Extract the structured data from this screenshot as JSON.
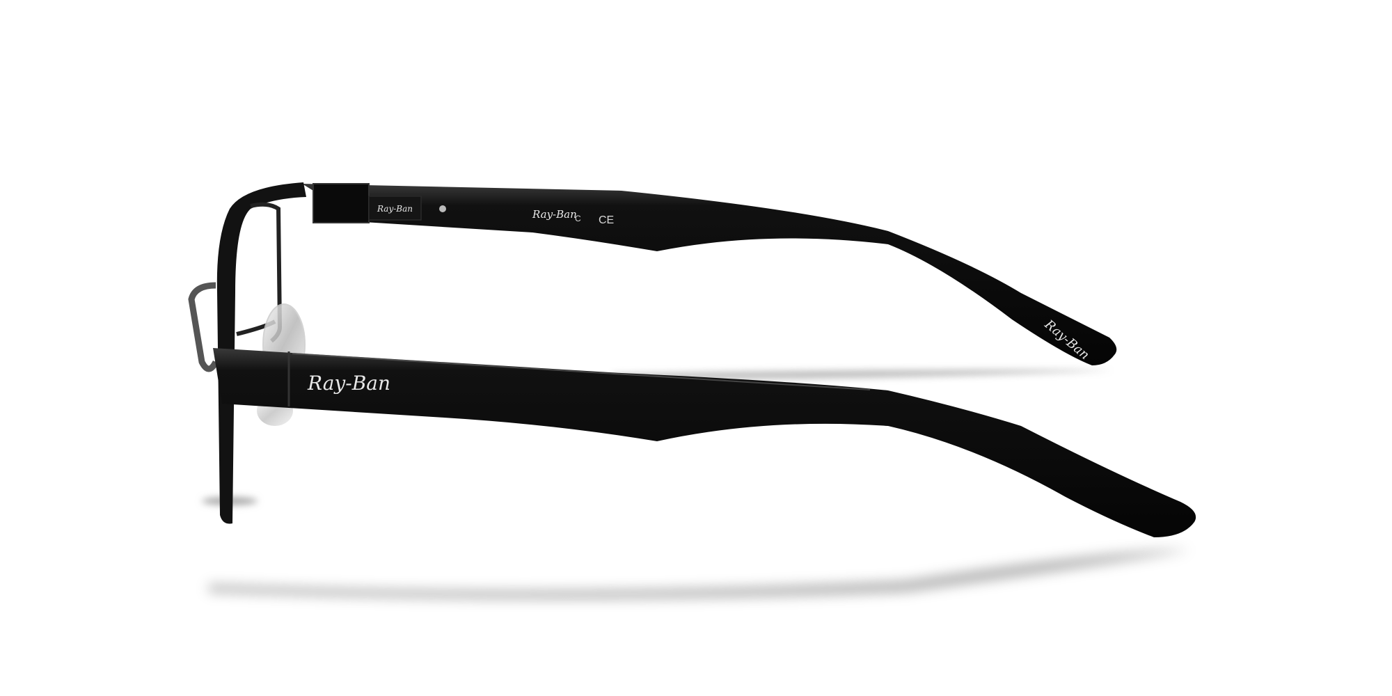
{
  "product": {
    "brand_logo": "Ray-Ban",
    "temple_marks": {
      "logo": "Ray-Ban",
      "c_mark": "C",
      "ce_mark": "CE"
    },
    "plate_logo": "Ray-Ban",
    "tip_logo": "Ray-Ban",
    "frame_color": "#0c0c0c",
    "background_color": "#ffffff"
  }
}
